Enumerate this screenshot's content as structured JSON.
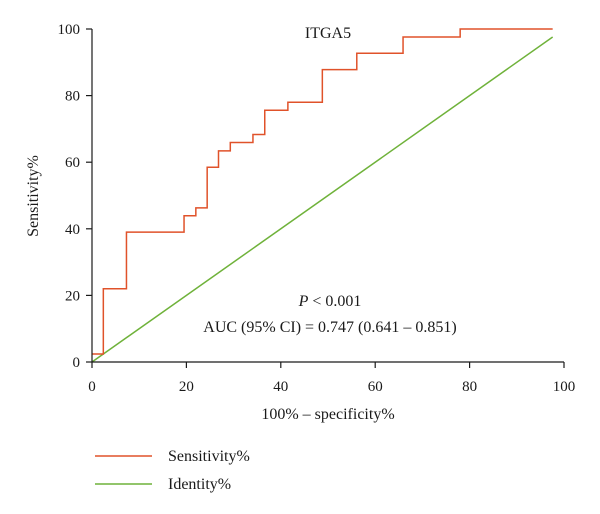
{
  "chart_data": {
    "type": "line",
    "title": "ITGA5",
    "xlabel": "100% – specificity%",
    "ylabel": "Sensitivity%",
    "xlim": [
      0,
      100
    ],
    "ylim": [
      0,
      100
    ],
    "xticks": [
      "0",
      "20",
      "40",
      "60",
      "80",
      "100"
    ],
    "yticks": [
      "0",
      "20",
      "40",
      "60",
      "80",
      "100"
    ],
    "grid": false,
    "legend_position": "bottom-left",
    "annotations": {
      "p_prefix": "P",
      "p_rest": " < 0.001",
      "auc": "AUC (95% CI) = 0.747 (0.641 – 0.851)"
    },
    "series": [
      {
        "name": "Sensitivity%",
        "color": "#e0522a",
        "step": true,
        "x": [
          0,
          2.4,
          2.4,
          7.3,
          7.3,
          19.5,
          19.5,
          22.0,
          22.0,
          24.4,
          24.4,
          26.8,
          26.8,
          29.3,
          29.3,
          34.1,
          34.1,
          36.6,
          36.6,
          41.5,
          41.5,
          48.8,
          48.8,
          56.1,
          56.1,
          65.9,
          65.9,
          78.0,
          78.0,
          97.6
        ],
        "y": [
          2.4,
          2.4,
          22.0,
          22.0,
          39.0,
          39.0,
          43.9,
          43.9,
          46.3,
          46.3,
          58.5,
          58.5,
          63.4,
          63.4,
          65.9,
          65.9,
          68.3,
          68.3,
          75.6,
          75.6,
          78.0,
          78.0,
          87.8,
          87.8,
          92.7,
          92.7,
          97.6,
          97.6,
          100,
          100
        ]
      },
      {
        "name": "Identity%",
        "color": "#6fb23a",
        "step": false,
        "x": [
          0,
          97.6
        ],
        "y": [
          0,
          97.6
        ]
      }
    ]
  }
}
